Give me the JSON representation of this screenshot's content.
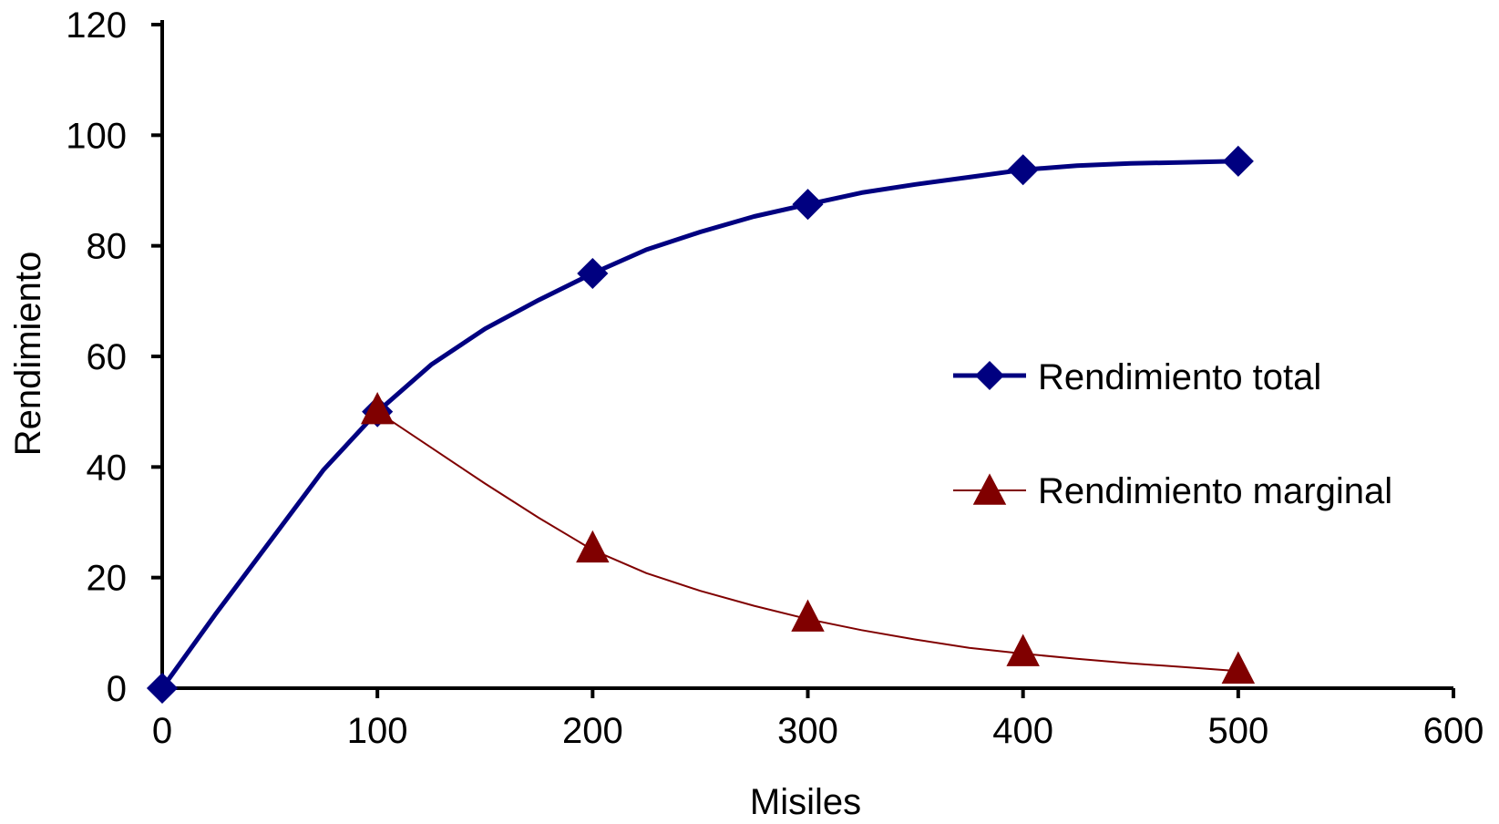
{
  "chart_data": {
    "type": "line",
    "title": "",
    "xlabel": "Misiles",
    "ylabel": "Rendimiento",
    "xlim": [
      0,
      600
    ],
    "ylim": [
      0,
      120
    ],
    "xticks": [
      "0",
      "100",
      "200",
      "300",
      "400",
      "500",
      "600"
    ],
    "yticks": [
      "0",
      "20",
      "40",
      "60",
      "80",
      "100",
      "120"
    ],
    "grid": false,
    "legend_position": "right",
    "series": [
      {
        "name": "Rendimiento total",
        "color": "#000080",
        "marker": "diamond",
        "markers_x": [
          0,
          100,
          200,
          300,
          400,
          500
        ],
        "markers_y": [
          0,
          50,
          75,
          87.5,
          93.75,
          95.3
        ],
        "x": [
          0,
          25,
          50,
          75,
          100,
          125,
          150,
          175,
          200,
          225,
          250,
          275,
          300,
          325,
          350,
          375,
          400,
          425,
          450,
          475,
          500
        ],
        "y": [
          0,
          13.5,
          26.5,
          39.5,
          50,
          58.5,
          65,
          70.2,
          75,
          79.3,
          82.5,
          85.3,
          87.5,
          89.6,
          91.1,
          92.4,
          93.75,
          94.5,
          94.9,
          95.1,
          95.3
        ]
      },
      {
        "name": "Rendimiento marginal",
        "color": "#800000",
        "marker": "triangle",
        "markers_x": [
          100,
          200,
          300,
          400,
          500
        ],
        "markers_y": [
          50,
          25,
          12.5,
          6.25,
          3.1
        ],
        "x": [
          100,
          125,
          150,
          175,
          200,
          225,
          250,
          275,
          300,
          325,
          350,
          375,
          400,
          425,
          450,
          475,
          500
        ],
        "y": [
          50,
          43.5,
          37,
          30.8,
          25,
          20.8,
          17.6,
          14.9,
          12.5,
          10.5,
          8.8,
          7.3,
          6.25,
          5.3,
          4.5,
          3.8,
          3.1
        ]
      }
    ]
  }
}
